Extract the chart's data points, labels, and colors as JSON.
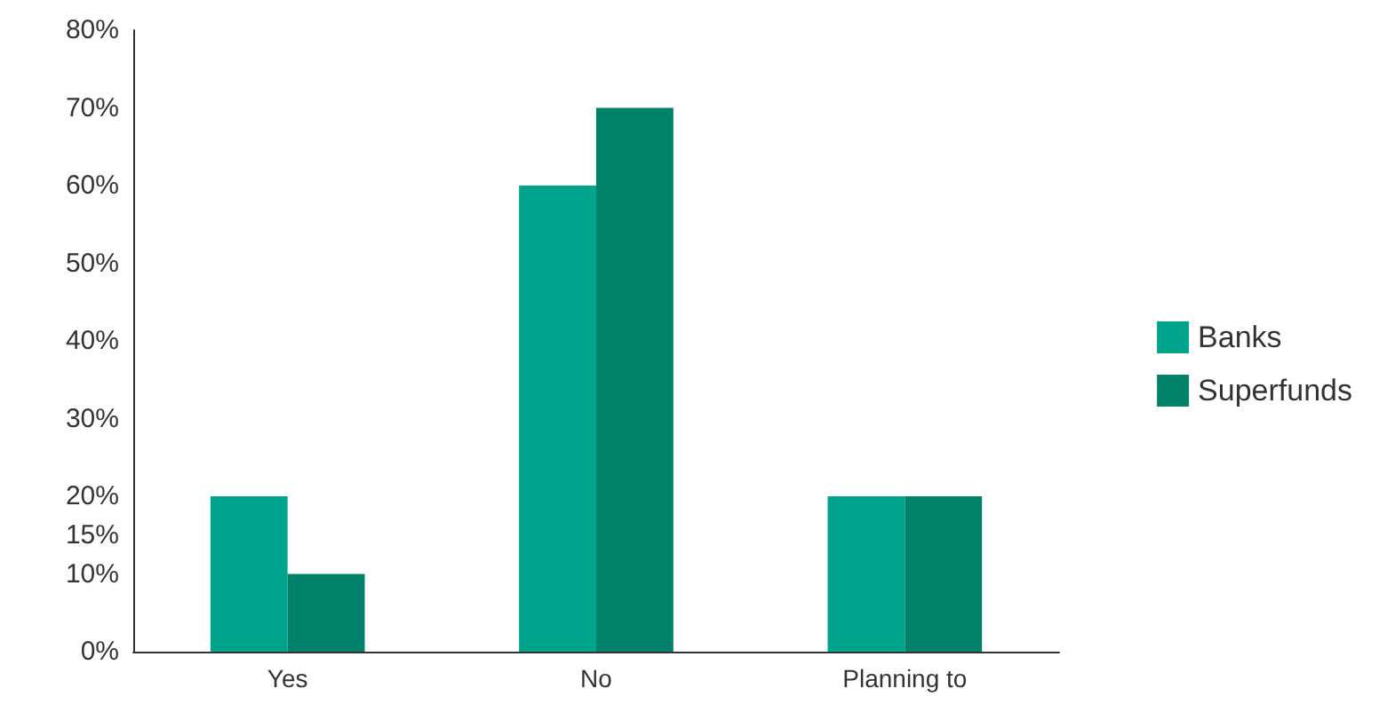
{
  "chart_data": {
    "type": "bar",
    "categories": [
      "Yes",
      "No",
      "Planning to"
    ],
    "series": [
      {
        "name": "Banks",
        "color": "#00a38b",
        "values": [
          20,
          60,
          20
        ]
      },
      {
        "name": "Superfunds",
        "color": "#00826a",
        "values": [
          10,
          70,
          20
        ]
      }
    ],
    "ylim": [
      0,
      80
    ],
    "yticks": [
      {
        "value": 0,
        "label": "0%"
      },
      {
        "value": 10,
        "label": "10%"
      },
      {
        "value": 15,
        "label": "15%"
      },
      {
        "value": 20,
        "label": "20%"
      },
      {
        "value": 30,
        "label": "30%"
      },
      {
        "value": 40,
        "label": "40%"
      },
      {
        "value": 50,
        "label": "50%"
      },
      {
        "value": 60,
        "label": "60%"
      },
      {
        "value": 70,
        "label": "70%"
      },
      {
        "value": 80,
        "label": "80%"
      }
    ],
    "grid": false,
    "legend": "right"
  }
}
